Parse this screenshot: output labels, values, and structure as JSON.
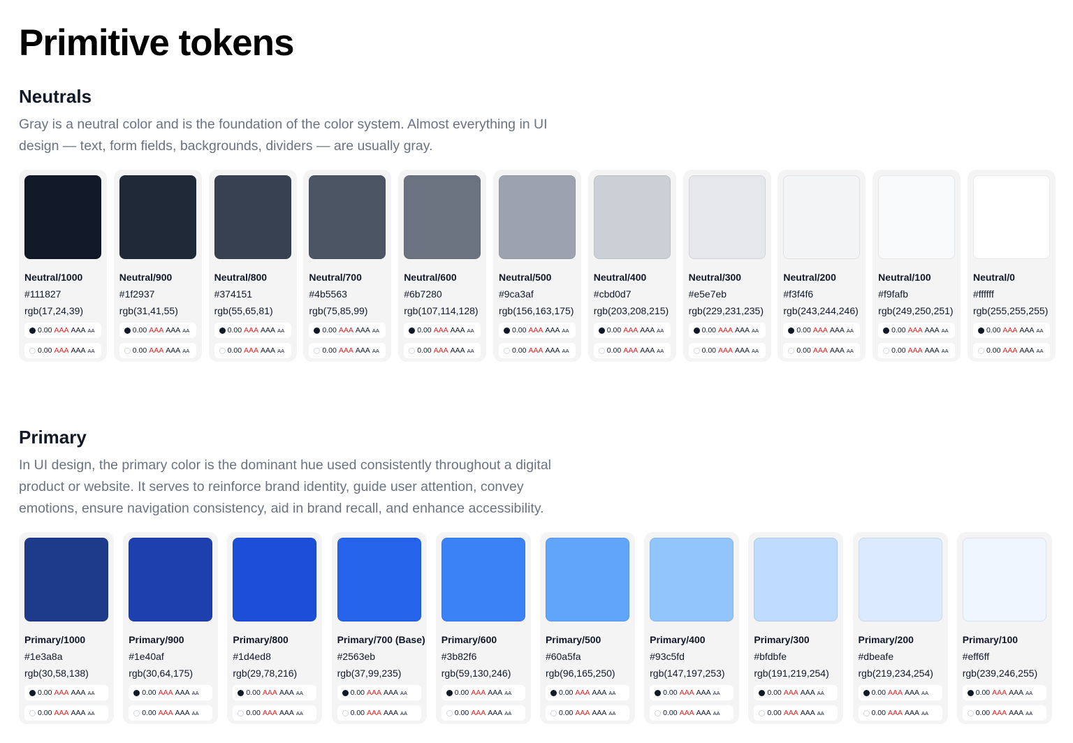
{
  "page": {
    "title": "Primitive tokens"
  },
  "contrast": {
    "value": "0.00",
    "aaa_fail": "AAA",
    "aaa": "AAA",
    "aa": "AA",
    "dark_dot": "#111827",
    "light_dot": "#ffffff"
  },
  "neutrals": {
    "title": "Neutrals",
    "description": "Gray is a neutral color and is the foundation of the color system. Almost everything in UI design — text, form fields, backgrounds, dividers — are usually gray.",
    "tokens": [
      {
        "name": "Neutral/1000",
        "hex": "#111827",
        "rgb": "rgb(17,24,39)"
      },
      {
        "name": "Neutral/900",
        "hex": "#1f2937",
        "rgb": "rgb(31,41,55)"
      },
      {
        "name": "Neutral/800",
        "hex": "#374151",
        "rgb": "rgb(55,65,81)"
      },
      {
        "name": "Neutral/700",
        "hex": "#4b5563",
        "rgb": "rgb(75,85,99)"
      },
      {
        "name": "Neutral/600",
        "hex": "#6b7280",
        "rgb": "rgb(107,114,128)"
      },
      {
        "name": "Neutral/500",
        "hex": "#9ca3af",
        "rgb": "rgb(156,163,175)"
      },
      {
        "name": "Neutral/400",
        "hex": "#cbd0d7",
        "rgb": "rgb(203,208,215)"
      },
      {
        "name": "Neutral/300",
        "hex": "#e5e7eb",
        "rgb": "rgb(229,231,235)"
      },
      {
        "name": "Neutral/200",
        "hex": "#f3f4f6",
        "rgb": "rgb(243,244,246)"
      },
      {
        "name": "Neutral/100",
        "hex": "#f9fafb",
        "rgb": "rgb(249,250,251)"
      },
      {
        "name": "Neutral/0",
        "hex": "#ffffff",
        "rgb": "rgb(255,255,255)"
      }
    ]
  },
  "primary": {
    "title": "Primary",
    "description": "In UI design, the primary color is the dominant hue used consistently throughout a digital product or website. It serves to reinforce brand identity, guide user attention, convey emotions, ensure navigation consistency, aid in brand recall, and enhance accessibility.",
    "tokens": [
      {
        "name": "Primary/1000",
        "hex": "#1e3a8a",
        "rgb": "rgb(30,58,138)"
      },
      {
        "name": "Primary/900",
        "hex": "#1e40af",
        "rgb": "rgb(30,64,175)"
      },
      {
        "name": "Primary/800",
        "hex": "#1d4ed8",
        "rgb": "rgb(29,78,216)"
      },
      {
        "name": "Primary/700 (Base)",
        "hex": "#2563eb",
        "rgb": "rgb(37,99,235)"
      },
      {
        "name": "Primary/600",
        "hex": "#3b82f6",
        "rgb": "rgb(59,130,246)"
      },
      {
        "name": "Primary/500",
        "hex": "#60a5fa",
        "rgb": "rgb(96,165,250)"
      },
      {
        "name": "Primary/400",
        "hex": "#93c5fd",
        "rgb": "rgb(147,197,253)"
      },
      {
        "name": "Primary/300",
        "hex": "#bfdbfe",
        "rgb": "rgb(191,219,254)"
      },
      {
        "name": "Primary/200",
        "hex": "#dbeafe",
        "rgb": "rgb(219,234,254)"
      },
      {
        "name": "Primary/100",
        "hex": "#eff6ff",
        "rgb": "rgb(239,246,255)"
      }
    ]
  }
}
